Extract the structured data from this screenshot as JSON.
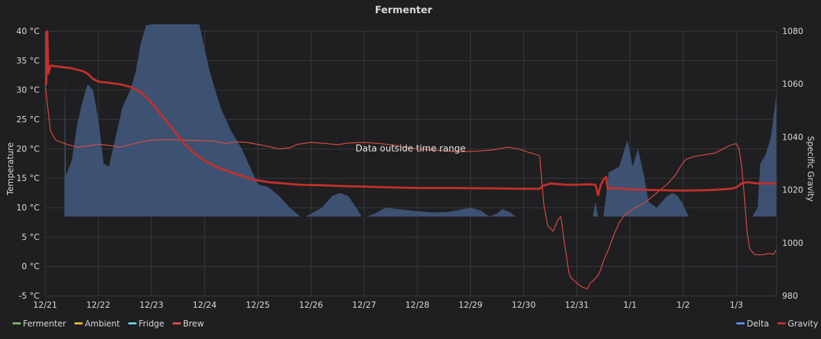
{
  "panel": {
    "title": "Fermenter"
  },
  "annotation": "Data outside time range",
  "chart_data": {
    "type": "line",
    "title": "Fermenter",
    "x": {
      "ticks": [
        "12/21",
        "12/22",
        "12/23",
        "12/24",
        "12/25",
        "12/26",
        "12/27",
        "12/28",
        "12/29",
        "12/30",
        "12/31",
        "1/1",
        "1/2",
        "1/3"
      ],
      "range_days": [
        0,
        13.75
      ]
    },
    "y_left": {
      "label": "Temperature",
      "ticks": [
        "40 °C",
        "35 °C",
        "30 °C",
        "25 °C",
        "20 °C",
        "15 °C",
        "10 °C",
        "5 °C",
        "0 °C",
        "-5 °C"
      ],
      "range": [
        -5,
        40
      ]
    },
    "y_right": {
      "label": "Specific Gravity",
      "ticks": [
        "1080",
        "1060",
        "1040",
        "1020",
        "1000",
        "980"
      ],
      "range": [
        980,
        1080
      ]
    },
    "legend_left": [
      {
        "name": "Fermenter",
        "color": "#7eb26d"
      },
      {
        "name": "Ambient",
        "color": "#eab839"
      },
      {
        "name": "Fridge",
        "color": "#6ed0e0"
      },
      {
        "name": "Brew",
        "color": "#e24d42"
      }
    ],
    "legend_right": [
      {
        "name": "Delta",
        "color": "#5794f2"
      },
      {
        "name": "Gravity",
        "color": "#c4302b"
      }
    ],
    "series": [
      {
        "name": "Delta",
        "type": "area",
        "axis": "left",
        "base": 8.5,
        "color": "#5794f2",
        "points": [
          [
            0.36,
            8.5
          ],
          [
            0.37,
            32
          ],
          [
            0.39,
            15.5
          ],
          [
            0.5,
            18
          ],
          [
            0.6,
            24
          ],
          [
            0.7,
            28
          ],
          [
            0.8,
            31
          ],
          [
            0.9,
            30
          ],
          [
            1.0,
            25
          ],
          [
            1.1,
            17.5
          ],
          [
            1.2,
            17
          ],
          [
            1.3,
            21
          ],
          [
            1.45,
            27
          ],
          [
            1.6,
            30
          ],
          [
            1.7,
            33
          ],
          [
            1.8,
            38
          ],
          [
            1.9,
            41
          ],
          [
            2.0,
            42
          ],
          [
            2.5,
            42
          ],
          [
            2.9,
            42
          ],
          [
            3.0,
            37
          ],
          [
            3.1,
            33
          ],
          [
            3.3,
            27
          ],
          [
            3.5,
            23
          ],
          [
            3.7,
            20
          ],
          [
            3.85,
            17
          ],
          [
            4.0,
            14
          ],
          [
            4.2,
            13.5
          ],
          [
            4.4,
            12
          ],
          [
            4.6,
            10
          ],
          [
            4.8,
            8.5
          ],
          [
            4.9,
            8.5
          ],
          [
            5.0,
            9
          ],
          [
            5.2,
            10
          ],
          [
            5.4,
            12
          ],
          [
            5.55,
            12.5
          ],
          [
            5.7,
            12
          ],
          [
            5.85,
            10
          ],
          [
            5.95,
            8.5
          ],
          [
            6.05,
            8.5
          ],
          [
            6.2,
            9
          ],
          [
            6.4,
            10
          ],
          [
            6.6,
            9.8
          ],
          [
            6.8,
            9.6
          ],
          [
            7.0,
            9.4
          ],
          [
            7.3,
            9.2
          ],
          [
            7.6,
            9.3
          ],
          [
            8.0,
            10
          ],
          [
            8.2,
            9.5
          ],
          [
            8.35,
            8.5
          ],
          [
            8.5,
            9
          ],
          [
            8.6,
            9.8
          ],
          [
            8.75,
            9.2
          ],
          [
            8.85,
            8.5
          ],
          [
            10.3,
            8.5
          ],
          [
            10.35,
            11
          ],
          [
            10.4,
            8.5
          ],
          [
            10.5,
            8.5
          ],
          [
            10.6,
            16
          ],
          [
            10.8,
            17
          ],
          [
            10.95,
            21.5
          ],
          [
            11.05,
            17
          ],
          [
            11.15,
            20
          ],
          [
            11.25,
            16
          ],
          [
            11.35,
            11
          ],
          [
            11.5,
            10
          ],
          [
            11.7,
            12
          ],
          [
            11.8,
            12.5
          ],
          [
            11.9,
            12
          ],
          [
            12.0,
            10.5
          ],
          [
            12.1,
            8.5
          ],
          [
            13.3,
            8.5
          ],
          [
            13.4,
            10
          ],
          [
            13.45,
            17.5
          ],
          [
            13.55,
            19
          ],
          [
            13.65,
            22
          ],
          [
            13.75,
            29
          ],
          [
            13.75,
            8.5
          ]
        ]
      },
      {
        "name": "Brew",
        "type": "line",
        "axis": "left",
        "color": "#e24d42",
        "width": 1.2,
        "points": [
          [
            0.0,
            31
          ],
          [
            0.05,
            27
          ],
          [
            0.1,
            23
          ],
          [
            0.2,
            21.5
          ],
          [
            0.4,
            20.8
          ],
          [
            0.6,
            20.3
          ],
          [
            0.8,
            20.5
          ],
          [
            1.0,
            20.8
          ],
          [
            1.2,
            20.6
          ],
          [
            1.4,
            20.3
          ],
          [
            1.6,
            20.7
          ],
          [
            1.8,
            21.2
          ],
          [
            2.0,
            21.5
          ],
          [
            2.3,
            21.6
          ],
          [
            2.6,
            21.5
          ],
          [
            2.9,
            21.4
          ],
          [
            3.2,
            21.3
          ],
          [
            3.4,
            20.9
          ],
          [
            3.6,
            21.2
          ],
          [
            3.8,
            21.1
          ],
          [
            4.1,
            20.6
          ],
          [
            4.4,
            20.0
          ],
          [
            4.6,
            20.2
          ],
          [
            4.75,
            20.8
          ],
          [
            5.0,
            21.1
          ],
          [
            5.3,
            20.9
          ],
          [
            5.5,
            20.7
          ],
          [
            5.7,
            21.0
          ],
          [
            6.0,
            21.1
          ],
          [
            6.3,
            20.9
          ],
          [
            6.6,
            20.6
          ],
          [
            6.8,
            20.2
          ],
          [
            7.0,
            20.0
          ],
          [
            7.3,
            19.8
          ],
          [
            7.6,
            19.6
          ],
          [
            7.8,
            19.5
          ],
          [
            8.1,
            19.6
          ],
          [
            8.4,
            19.8
          ],
          [
            8.7,
            20.3
          ],
          [
            8.9,
            20.0
          ],
          [
            9.1,
            19.4
          ],
          [
            9.25,
            19.0
          ],
          [
            9.3,
            18.8
          ],
          [
            9.38,
            10.5
          ],
          [
            9.45,
            7.0
          ],
          [
            9.55,
            6.0
          ],
          [
            9.65,
            8.0
          ],
          [
            9.7,
            8.5
          ],
          [
            9.75,
            5.0
          ],
          [
            9.8,
            2.0
          ],
          [
            9.85,
            -1.0
          ],
          [
            9.9,
            -2.0
          ],
          [
            10.0,
            -2.8
          ],
          [
            10.1,
            -3.5
          ],
          [
            10.2,
            -3.8
          ],
          [
            10.25,
            -2.8
          ],
          [
            10.3,
            -2.5
          ],
          [
            10.4,
            -1.5
          ],
          [
            10.45,
            -0.5
          ],
          [
            10.5,
            1.0
          ],
          [
            10.6,
            3.0
          ],
          [
            10.7,
            5.5
          ],
          [
            10.8,
            7.5
          ],
          [
            10.9,
            8.8
          ],
          [
            11.1,
            10.0
          ],
          [
            11.3,
            11.0
          ],
          [
            11.5,
            12.5
          ],
          [
            11.7,
            14.0
          ],
          [
            11.85,
            15.5
          ],
          [
            11.95,
            17.0
          ],
          [
            12.05,
            18.2
          ],
          [
            12.2,
            18.7
          ],
          [
            12.4,
            19.0
          ],
          [
            12.6,
            19.3
          ],
          [
            12.75,
            20.0
          ],
          [
            12.9,
            20.7
          ],
          [
            13.0,
            20.9
          ],
          [
            13.05,
            20.0
          ],
          [
            13.1,
            17.0
          ],
          [
            13.15,
            12.0
          ],
          [
            13.2,
            6.0
          ],
          [
            13.25,
            3.0
          ],
          [
            13.35,
            2.0
          ],
          [
            13.5,
            2.0
          ],
          [
            13.6,
            2.2
          ],
          [
            13.7,
            2.1
          ],
          [
            13.75,
            2.8
          ]
        ]
      },
      {
        "name": "Gravity",
        "type": "line",
        "axis": "right",
        "color": "#c4302b",
        "width": 3,
        "points": [
          [
            0.0,
            1080
          ],
          [
            0.02,
            1060
          ],
          [
            0.04,
            1080
          ],
          [
            0.06,
            1064
          ],
          [
            0.1,
            1067
          ],
          [
            0.3,
            1066.5
          ],
          [
            0.5,
            1066
          ],
          [
            0.7,
            1065
          ],
          [
            0.8,
            1064
          ],
          [
            0.9,
            1062
          ],
          [
            1.0,
            1061
          ],
          [
            1.2,
            1060.5
          ],
          [
            1.4,
            1060
          ],
          [
            1.6,
            1059
          ],
          [
            1.8,
            1057
          ],
          [
            2.0,
            1053
          ],
          [
            2.2,
            1048
          ],
          [
            2.4,
            1043
          ],
          [
            2.6,
            1038
          ],
          [
            2.8,
            1034
          ],
          [
            3.0,
            1031
          ],
          [
            3.3,
            1028
          ],
          [
            3.6,
            1026
          ],
          [
            3.9,
            1024
          ],
          [
            4.2,
            1023
          ],
          [
            4.5,
            1022.5
          ],
          [
            4.8,
            1022
          ],
          [
            5.2,
            1021.8
          ],
          [
            5.6,
            1021.5
          ],
          [
            6.0,
            1021.3
          ],
          [
            6.5,
            1021
          ],
          [
            7.0,
            1020.8
          ],
          [
            7.5,
            1020.8
          ],
          [
            8.0,
            1020.7
          ],
          [
            8.5,
            1020.6
          ],
          [
            9.0,
            1020.5
          ],
          [
            9.3,
            1020.5
          ],
          [
            9.35,
            1021.5
          ],
          [
            9.5,
            1022.5
          ],
          [
            9.8,
            1022
          ],
          [
            10.0,
            1022
          ],
          [
            10.2,
            1022.2
          ],
          [
            10.35,
            1022
          ],
          [
            10.4,
            1018
          ],
          [
            10.45,
            1022
          ],
          [
            10.5,
            1024
          ],
          [
            10.55,
            1025
          ],
          [
            10.58,
            1020.5
          ],
          [
            10.7,
            1020.8
          ],
          [
            11.0,
            1020.3
          ],
          [
            11.5,
            1020
          ],
          [
            12.0,
            1019.8
          ],
          [
            12.5,
            1020
          ],
          [
            12.9,
            1020.5
          ],
          [
            13.0,
            1021
          ],
          [
            13.1,
            1022.5
          ],
          [
            13.2,
            1023
          ],
          [
            13.4,
            1022.5
          ],
          [
            13.75,
            1022.5
          ]
        ]
      }
    ]
  }
}
